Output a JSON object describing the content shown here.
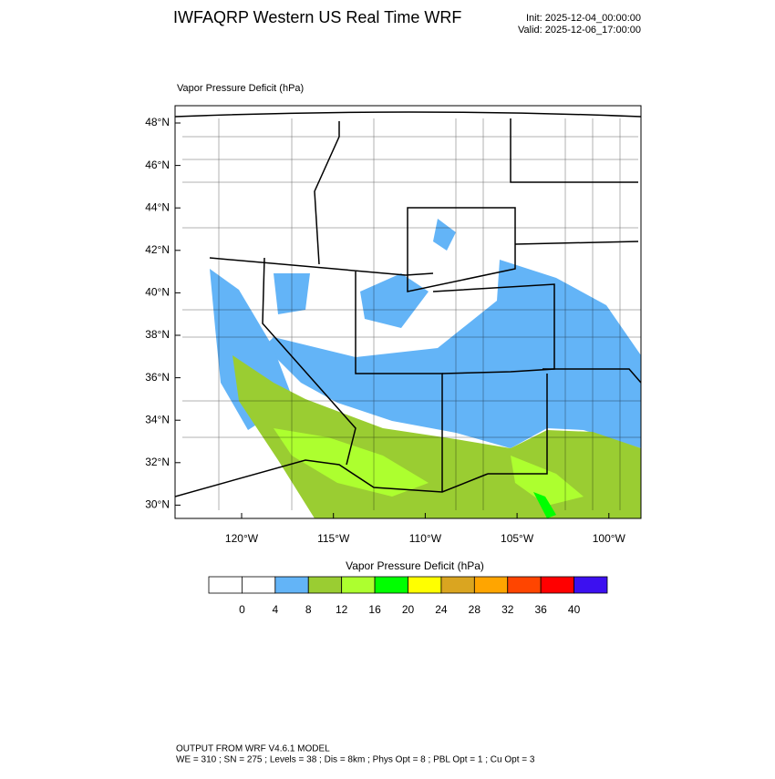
{
  "header": {
    "title": "IWFAQRP Western US Real Time WRF",
    "init": "Init: 2025-12-04_00:00:00",
    "valid": "Valid: 2025-12-06_17:00:00"
  },
  "map": {
    "label": "Vapor Pressure Deficit   (hPa)",
    "lat_ticks": [
      "48°N",
      "46°N",
      "44°N",
      "42°N",
      "40°N",
      "38°N",
      "36°N",
      "34°N",
      "32°N",
      "30°N"
    ],
    "lon_ticks": [
      "120°W",
      "115°W",
      "110°W",
      "105°W",
      "100°W"
    ]
  },
  "colorbar": {
    "title": "Vapor Pressure Deficit  (hPa)",
    "levels": [
      0,
      4,
      8,
      12,
      16,
      20,
      24,
      28,
      32,
      36,
      40
    ],
    "colors": [
      "#ffffff",
      "#ffffff",
      "#63b4f7",
      "#9acd32",
      "#adff2f",
      "#00ff00",
      "#ffff00",
      "#daa520",
      "#ffa500",
      "#ff4500",
      "#ff0000",
      "#3c10f0"
    ]
  },
  "footer": {
    "line1": "OUTPUT FROM WRF V4.6.1 MODEL",
    "line2": "WE = 310 ; SN = 275 ; Levels = 38 ; Dis = 8km ; Phys Opt = 8 ; PBL Opt = 1 ; Cu Opt = 3"
  }
}
